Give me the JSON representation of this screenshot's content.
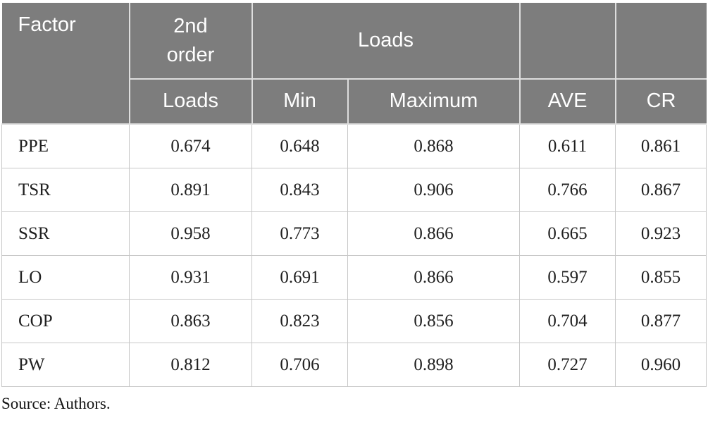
{
  "table": {
    "header": {
      "factor": "Factor",
      "second_order": "2nd order",
      "loads_group": "Loads"
    },
    "subheader": [
      "Loads",
      "Min",
      "Maximum",
      "AVE",
      "CR"
    ],
    "rows": [
      {
        "factor": "PPE",
        "values": [
          "0.674",
          "0.648",
          "0.868",
          "0.611",
          "0.861"
        ]
      },
      {
        "factor": "TSR",
        "values": [
          "0.891",
          "0.843",
          "0.906",
          "0.766",
          "0.867"
        ]
      },
      {
        "factor": "SSR",
        "values": [
          "0.958",
          "0.773",
          "0.866",
          "0.665",
          "0.923"
        ]
      },
      {
        "factor": "LO",
        "values": [
          "0.931",
          "0.691",
          "0.866",
          "0.597",
          "0.855"
        ]
      },
      {
        "factor": "COP",
        "values": [
          "0.863",
          "0.823",
          "0.856",
          "0.704",
          "0.877"
        ]
      },
      {
        "factor": "PW",
        "values": [
          "0.812",
          "0.706",
          "0.898",
          "0.727",
          "0.960"
        ]
      }
    ]
  },
  "source_note": "Source: Authors.",
  "colors": {
    "header_bg": "#7d7d7d",
    "header_text": "#ffffff",
    "body_text": "#1f1f1f",
    "grid_line": "#c8c8c8",
    "header_divider": "#dedede"
  }
}
